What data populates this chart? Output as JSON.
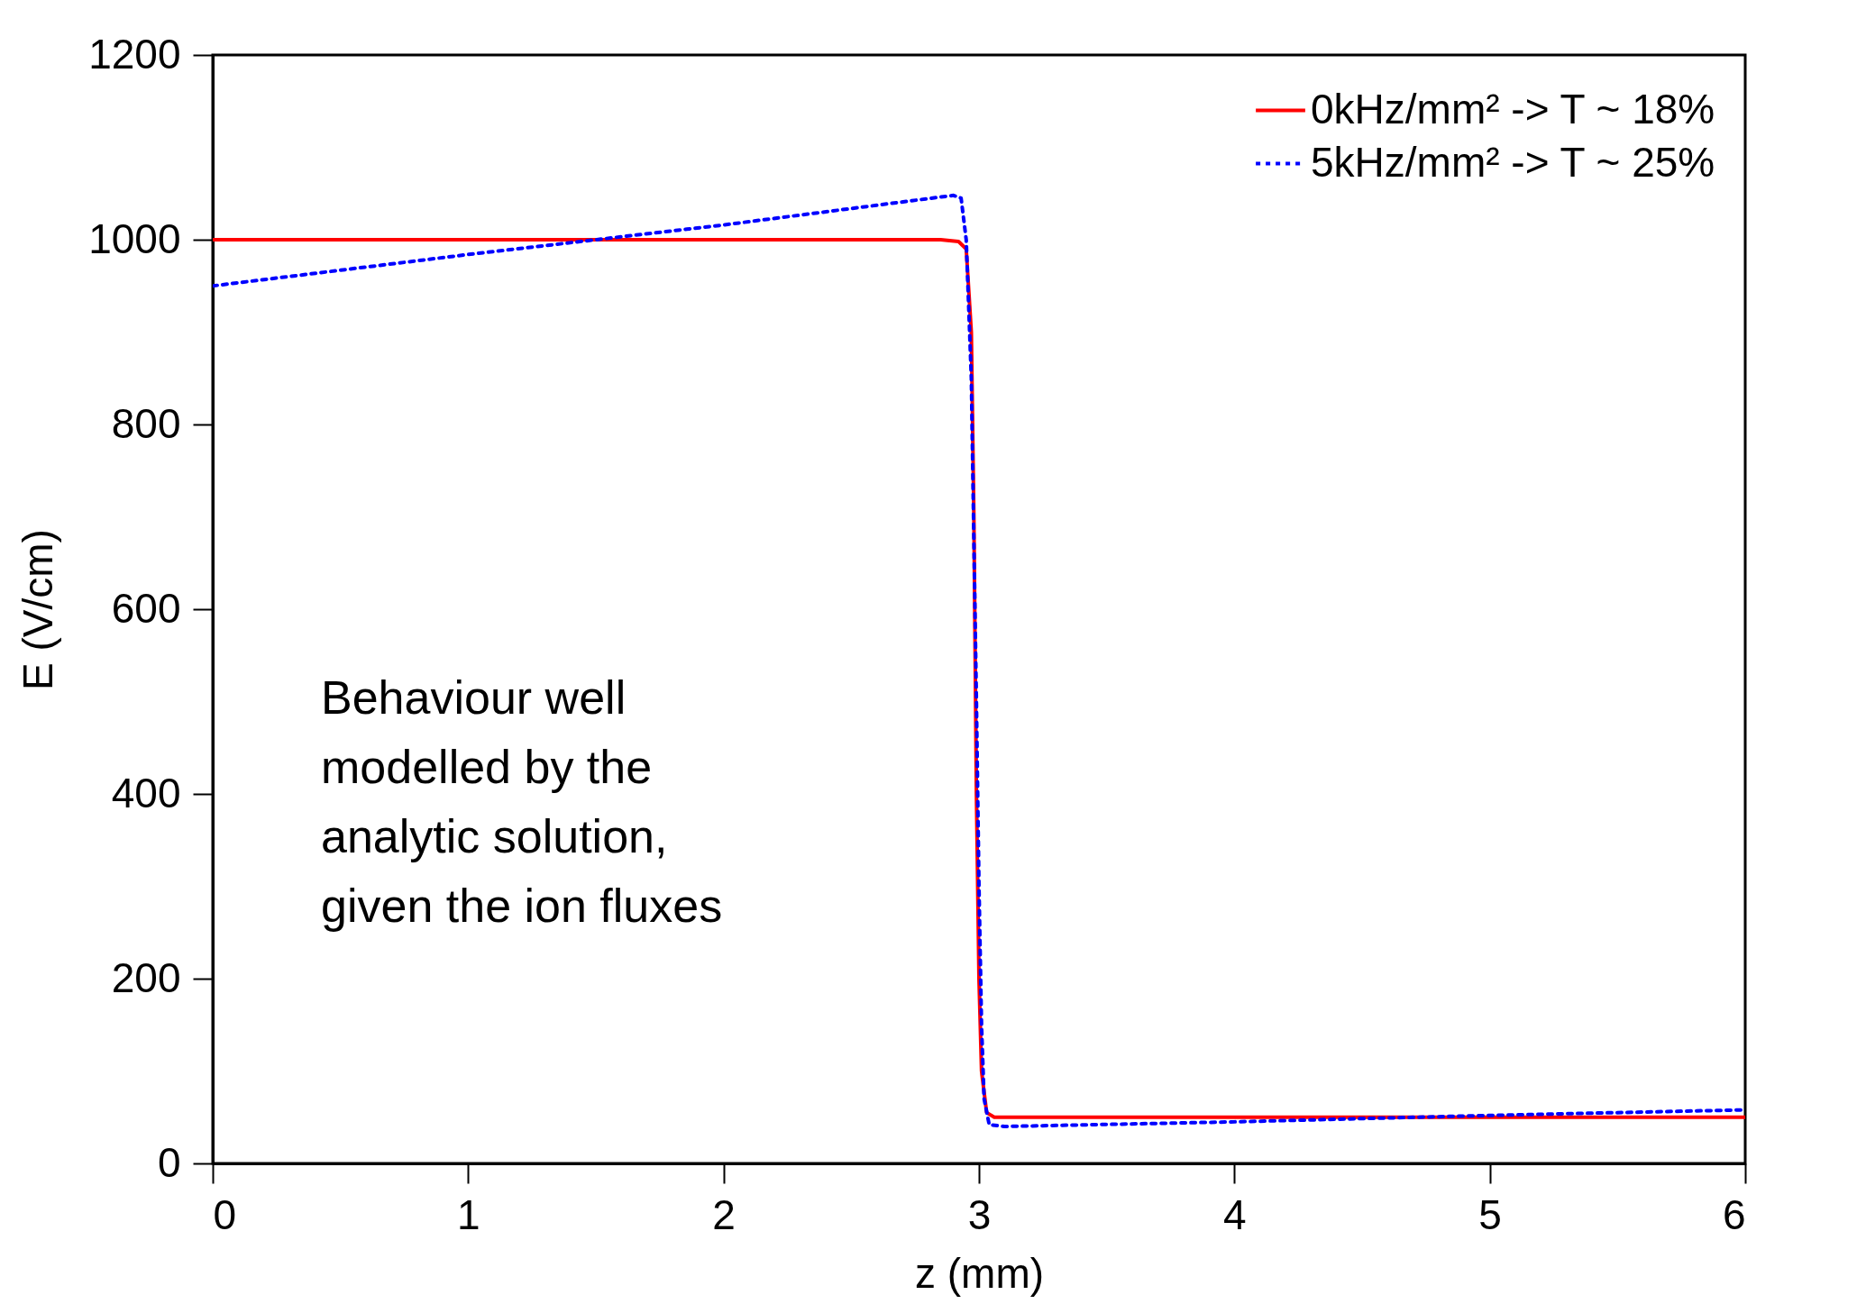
{
  "chart_data": {
    "type": "line",
    "xlabel": "z (mm)",
    "ylabel": "E (V/cm)",
    "xlim": [
      0,
      6
    ],
    "ylim": [
      0,
      1200
    ],
    "xticks": [
      0,
      1,
      2,
      3,
      4,
      5,
      6
    ],
    "yticks": [
      0,
      200,
      400,
      600,
      800,
      1000,
      1200
    ],
    "grid": false,
    "legend": "top right",
    "annotations": [
      "Behaviour well\nmodelled by the\nanalytic solution,\ngiven the ion fluxes"
    ],
    "series": [
      {
        "name": "0kHz/mm² -> T ~ 18%",
        "color": "#ff0000",
        "line_style": "solid",
        "x": [
          0,
          1,
          2,
          2.85,
          2.92,
          2.95,
          2.97,
          2.98,
          2.99,
          3.0,
          3.01,
          3.03,
          3.06,
          4,
          5,
          6
        ],
        "values": [
          1000,
          1000,
          1000,
          1000,
          998,
          990,
          900,
          700,
          400,
          200,
          100,
          55,
          50,
          50,
          50,
          50
        ]
      },
      {
        "name": "5kHz/mm² -> T ~ 25%",
        "color": "#0000ff",
        "line_style": "dotted",
        "x": [
          0,
          1,
          1.5,
          2,
          2.9,
          2.93,
          2.95,
          2.97,
          2.99,
          3.0,
          3.01,
          3.02,
          3.04,
          3.1,
          4,
          5,
          6
        ],
        "values": [
          950,
          984,
          1000,
          1016,
          1048,
          1045,
          1000,
          850,
          500,
          300,
          150,
          70,
          42,
          40,
          45,
          52,
          58
        ]
      }
    ]
  }
}
